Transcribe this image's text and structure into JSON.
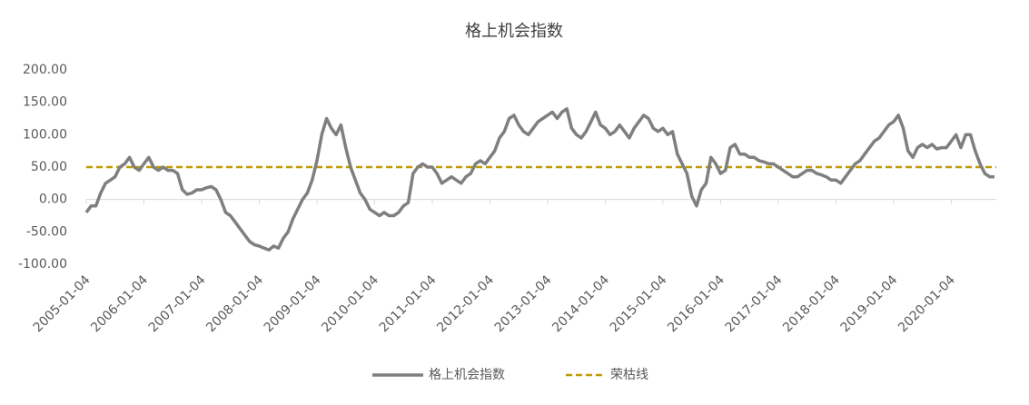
{
  "chart_data": {
    "type": "line",
    "title": "格上机会指数",
    "x": [
      "2005-01-04",
      "2005-02-04",
      "2005-03-04",
      "2005-04-04",
      "2005-05-04",
      "2005-06-04",
      "2005-07-04",
      "2005-08-04",
      "2005-09-04",
      "2005-10-04",
      "2005-11-04",
      "2005-12-04",
      "2006-01-04",
      "2006-02-04",
      "2006-03-04",
      "2006-04-04",
      "2006-05-04",
      "2006-06-04",
      "2006-07-04",
      "2006-08-04",
      "2006-09-04",
      "2006-10-04",
      "2006-11-04",
      "2006-12-04",
      "2007-01-04",
      "2007-02-04",
      "2007-03-04",
      "2007-04-04",
      "2007-05-04",
      "2007-06-04",
      "2007-07-04",
      "2007-08-04",
      "2007-09-04",
      "2007-10-04",
      "2007-11-04",
      "2007-12-04",
      "2008-01-04",
      "2008-02-04",
      "2008-03-04",
      "2008-04-04",
      "2008-05-04",
      "2008-06-04",
      "2008-07-04",
      "2008-08-04",
      "2008-09-04",
      "2008-10-04",
      "2008-11-04",
      "2008-12-04",
      "2009-01-04",
      "2009-02-04",
      "2009-03-04",
      "2009-04-04",
      "2009-05-04",
      "2009-06-04",
      "2009-07-04",
      "2009-08-04",
      "2009-09-04",
      "2009-10-04",
      "2009-11-04",
      "2009-12-04",
      "2010-01-04",
      "2010-02-04",
      "2010-03-04",
      "2010-04-04",
      "2010-05-04",
      "2010-06-04",
      "2010-07-04",
      "2010-08-04",
      "2010-09-04",
      "2010-10-04",
      "2010-11-04",
      "2010-12-04",
      "2011-01-04",
      "2011-02-04",
      "2011-03-04",
      "2011-04-04",
      "2011-05-04",
      "2011-06-04",
      "2011-07-04",
      "2011-08-04",
      "2011-09-04",
      "2011-10-04",
      "2011-11-04",
      "2011-12-04",
      "2012-01-04",
      "2012-02-04",
      "2012-03-04",
      "2012-04-04",
      "2012-05-04",
      "2012-06-04",
      "2012-07-04",
      "2012-08-04",
      "2012-09-04",
      "2012-10-04",
      "2012-11-04",
      "2012-12-04",
      "2013-01-04",
      "2013-02-04",
      "2013-03-04",
      "2013-04-04",
      "2013-05-04",
      "2013-06-04",
      "2013-07-04",
      "2013-08-04",
      "2013-09-04",
      "2013-10-04",
      "2013-11-04",
      "2013-12-04",
      "2014-01-04",
      "2014-02-04",
      "2014-03-04",
      "2014-04-04",
      "2014-05-04",
      "2014-06-04",
      "2014-07-04",
      "2014-08-04",
      "2014-09-04",
      "2014-10-04",
      "2014-11-04",
      "2014-12-04",
      "2015-01-04",
      "2015-02-04",
      "2015-03-04",
      "2015-04-04",
      "2015-05-04",
      "2015-06-04",
      "2015-07-04",
      "2015-08-04",
      "2015-09-04",
      "2015-10-04",
      "2015-11-04",
      "2015-12-04",
      "2016-01-04",
      "2016-02-04",
      "2016-03-04",
      "2016-04-04",
      "2016-05-04",
      "2016-06-04",
      "2016-07-04",
      "2016-08-04",
      "2016-09-04",
      "2016-10-04",
      "2016-11-04",
      "2016-12-04",
      "2017-01-04",
      "2017-02-04",
      "2017-03-04",
      "2017-04-04",
      "2017-05-04",
      "2017-06-04",
      "2017-07-04",
      "2017-08-04",
      "2017-09-04",
      "2017-10-04",
      "2017-11-04",
      "2017-12-04",
      "2018-01-04",
      "2018-02-04",
      "2018-03-04",
      "2018-04-04",
      "2018-05-04",
      "2018-06-04",
      "2018-07-04",
      "2018-08-04",
      "2018-09-04",
      "2018-10-04",
      "2018-11-04",
      "2018-12-04",
      "2019-01-04",
      "2019-02-04",
      "2019-03-04",
      "2019-04-04",
      "2019-05-04",
      "2019-06-04",
      "2019-07-04",
      "2019-08-04",
      "2019-09-04",
      "2019-10-04",
      "2019-11-04",
      "2019-12-04",
      "2020-01-04",
      "2020-02-04",
      "2020-03-04",
      "2020-04-04",
      "2020-05-04",
      "2020-06-04",
      "2020-07-04",
      "2020-08-04",
      "2020-09-04",
      "2020-10-04"
    ],
    "series": [
      {
        "name": "格上机会指数",
        "color": "#7f7f7f",
        "values": [
          -20,
          -10,
          -10,
          10,
          25,
          30,
          35,
          50,
          55,
          65,
          50,
          45,
          55,
          65,
          50,
          45,
          50,
          45,
          45,
          40,
          15,
          8,
          10,
          15,
          15,
          18,
          20,
          15,
          0,
          -20,
          -25,
          -35,
          -45,
          -55,
          -65,
          -70,
          -72,
          -75,
          -78,
          -72,
          -75,
          -60,
          -50,
          -30,
          -15,
          0,
          10,
          30,
          60,
          100,
          125,
          110,
          100,
          115,
          80,
          50,
          30,
          10,
          0,
          -15,
          -20,
          -25,
          -20,
          -25,
          -25,
          -20,
          -10,
          -5,
          40,
          50,
          55,
          50,
          50,
          40,
          25,
          30,
          35,
          30,
          25,
          35,
          40,
          55,
          60,
          55,
          65,
          75,
          95,
          105,
          125,
          130,
          115,
          105,
          100,
          110,
          120,
          125,
          130,
          135,
          125,
          135,
          140,
          110,
          100,
          95,
          105,
          120,
          135,
          115,
          110,
          100,
          105,
          115,
          105,
          95,
          110,
          120,
          130,
          125,
          110,
          105,
          110,
          100,
          105,
          70,
          55,
          40,
          5,
          -10,
          15,
          25,
          65,
          55,
          40,
          45,
          80,
          85,
          70,
          70,
          65,
          65,
          60,
          58,
          55,
          55,
          50,
          45,
          40,
          35,
          35,
          40,
          45,
          45,
          40,
          38,
          35,
          30,
          30,
          25,
          35,
          45,
          55,
          60,
          70,
          80,
          90,
          95,
          105,
          115,
          120,
          130,
          110,
          75,
          65,
          80,
          85,
          80,
          85,
          78,
          80,
          80,
          90,
          100,
          80,
          100,
          100,
          75,
          55,
          40,
          35,
          35
        ]
      }
    ],
    "reference_line": {
      "name": "荣枯线",
      "value": 50,
      "color": "#c09a00"
    },
    "ylim": [
      -100,
      200
    ],
    "yticks": [
      {
        "value": -100,
        "label": "-100.00"
      },
      {
        "value": -50,
        "label": "-50.00"
      },
      {
        "value": 0,
        "label": "0.00"
      },
      {
        "value": 50,
        "label": "50.00"
      },
      {
        "value": 100,
        "label": "100.00"
      },
      {
        "value": 150,
        "label": "150.00"
      },
      {
        "value": 200,
        "label": "200.00"
      }
    ],
    "xticks": [
      "2005-01-04",
      "2006-01-04",
      "2007-01-04",
      "2008-01-04",
      "2009-01-04",
      "2010-01-04",
      "2011-01-04",
      "2012-01-04",
      "2013-01-04",
      "2014-01-04",
      "2015-01-04",
      "2016-01-04",
      "2017-01-04",
      "2018-01-04",
      "2019-01-04",
      "2020-01-04"
    ],
    "grid": false,
    "legend": "bottom"
  }
}
